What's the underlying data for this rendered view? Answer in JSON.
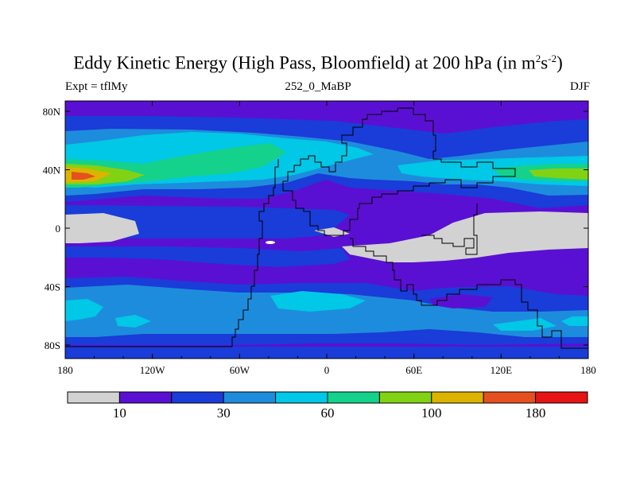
{
  "title": {
    "main": "Eddy Kinetic Energy (High Pass, Bloomfield) at 200 hPa (in m",
    "sup1": "2",
    "mid": "s",
    "sup2": "-2",
    "end": ")"
  },
  "subtitle": {
    "left": "Expt = tflMy",
    "center": "252_0_MaBP",
    "right": "DJF"
  },
  "map": {
    "lon_ticks": [
      "180",
      "120W",
      "60W",
      "0",
      "60E",
      "120E",
      "180"
    ],
    "lat_ticks": [
      "80N",
      "40N",
      "0",
      "40S",
      "80S"
    ]
  },
  "colorbar": {
    "colors": [
      "#d2d2d2",
      "#5a10d2",
      "#1a3cd8",
      "#1e8cdc",
      "#00c8e6",
      "#14d28c",
      "#82d214",
      "#dcb400",
      "#e6501e",
      "#e61414"
    ],
    "labels": [
      "10",
      "30",
      "60",
      "100",
      "180"
    ]
  },
  "palette": {
    "gray": "#d2d2d2",
    "purple": "#5a10d2",
    "blue": "#1a3cd8",
    "mblue": "#1e8cdc",
    "cyan": "#00c8e6",
    "green": "#14d28c",
    "yellow": "#82d214",
    "orange": "#dcb400",
    "red": "#e6501e"
  }
}
